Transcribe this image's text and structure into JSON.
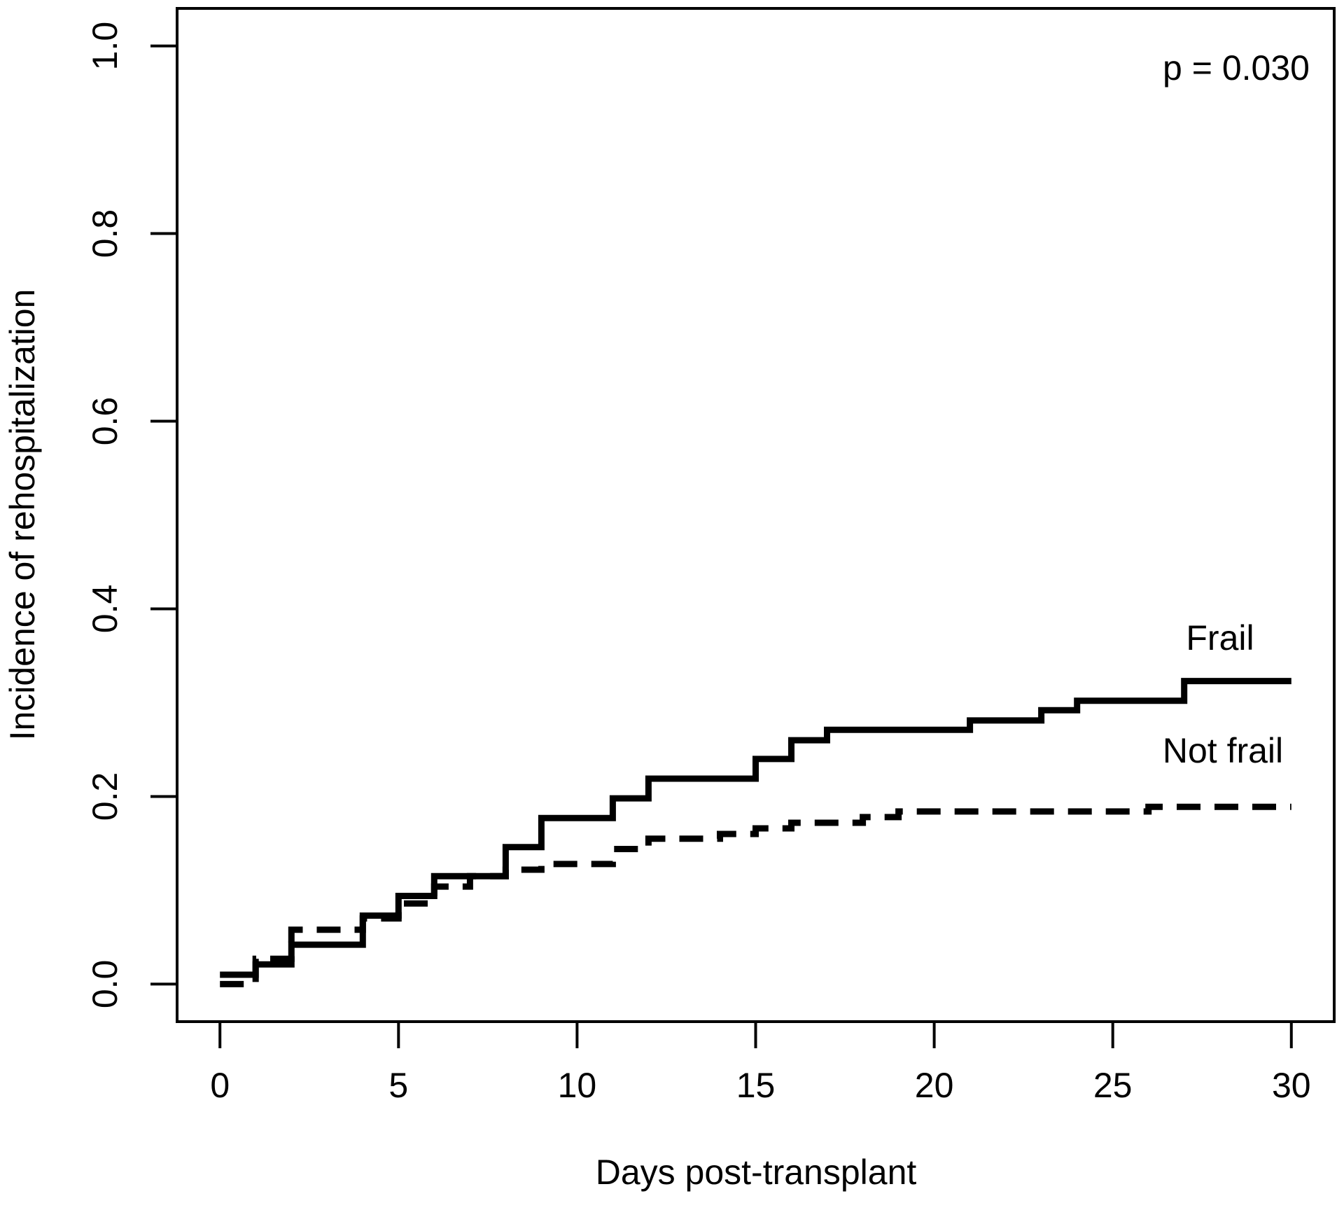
{
  "chart_data": {
    "type": "line",
    "subtype": "step-after-cumulative-incidence",
    "title": "",
    "xlabel": "Days post-transplant",
    "ylabel": "Incidence of rehospitalization",
    "xlim": [
      0,
      30
    ],
    "ylim": [
      0.0,
      1.0
    ],
    "x_ticks": [
      "0",
      "5",
      "10",
      "15",
      "20",
      "25",
      "30"
    ],
    "x_tick_values": [
      0,
      5,
      10,
      15,
      20,
      25,
      30
    ],
    "y_ticks": [
      "0.0",
      "0.2",
      "0.4",
      "0.6",
      "0.8",
      "1.0"
    ],
    "y_tick_values": [
      0.0,
      0.2,
      0.4,
      0.6,
      0.8,
      1.0
    ],
    "grid": false,
    "legend_position": "inline-labels-right",
    "annotation": {
      "p_value_label": "p = 0.030"
    },
    "colors": {
      "line": "#000000",
      "background": "#ffffff"
    },
    "series": [
      {
        "name": "Frail",
        "label": "Frail",
        "line_style": "solid",
        "points": [
          [
            0,
            0.01
          ],
          [
            1,
            0.021
          ],
          [
            2,
            0.042
          ],
          [
            4,
            0.073
          ],
          [
            5,
            0.094
          ],
          [
            6,
            0.115
          ],
          [
            8,
            0.146
          ],
          [
            9,
            0.177
          ],
          [
            11,
            0.198
          ],
          [
            12,
            0.219
          ],
          [
            15,
            0.24
          ],
          [
            16,
            0.26
          ],
          [
            17,
            0.271
          ],
          [
            21,
            0.281
          ],
          [
            23,
            0.292
          ],
          [
            24,
            0.302
          ],
          [
            27,
            0.323
          ],
          [
            30,
            0.323
          ]
        ]
      },
      {
        "name": "Not frail",
        "label": "Not frail",
        "line_style": "dashed",
        "points": [
          [
            0,
            0.0
          ],
          [
            1,
            0.027
          ],
          [
            2,
            0.058
          ],
          [
            4,
            0.07
          ],
          [
            5,
            0.086
          ],
          [
            6,
            0.104
          ],
          [
            7,
            0.115
          ],
          [
            8,
            0.122
          ],
          [
            9,
            0.128
          ],
          [
            11,
            0.144
          ],
          [
            12,
            0.155
          ],
          [
            14,
            0.16
          ],
          [
            15,
            0.166
          ],
          [
            16,
            0.172
          ],
          [
            18,
            0.178
          ],
          [
            19,
            0.184
          ],
          [
            26,
            0.189
          ],
          [
            30,
            0.189
          ]
        ]
      }
    ]
  }
}
